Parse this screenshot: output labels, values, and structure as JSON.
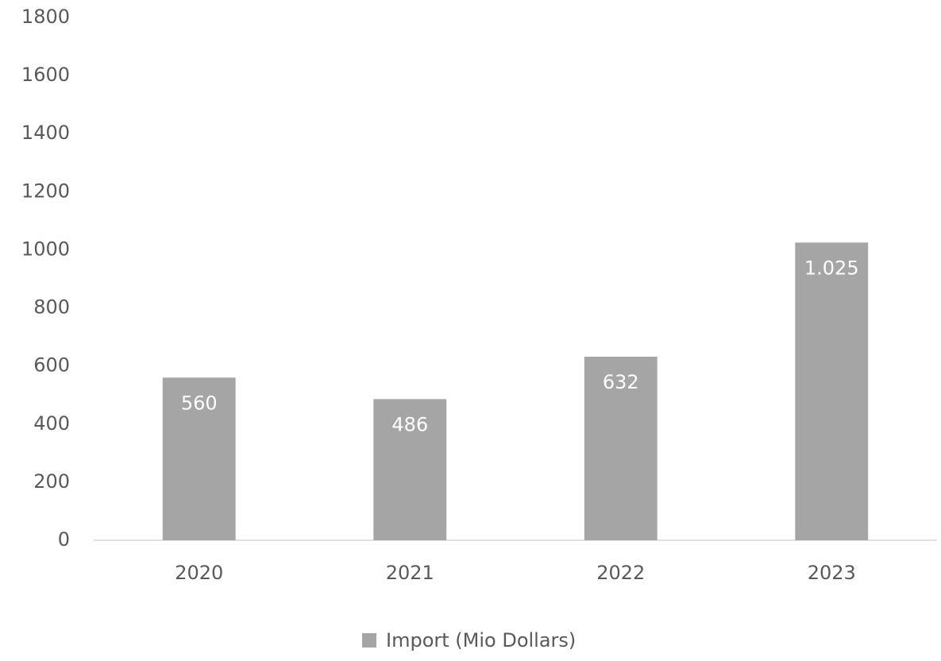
{
  "chart_data": {
    "type": "bar",
    "categories": [
      "2020",
      "2021",
      "2022",
      "2023"
    ],
    "series": [
      {
        "name": "Import (Mio Dollars)",
        "color": "#a5a5a5",
        "values": [
          560,
          486,
          632,
          1025
        ],
        "value_labels": [
          "560",
          "486",
          "632",
          "1.025"
        ]
      }
    ],
    "ylim": [
      0,
      1800
    ],
    "yticks": [
      0,
      200,
      400,
      600,
      800,
      1000,
      1200,
      1400,
      1600,
      1800
    ],
    "grid": false,
    "legend": "bottom"
  }
}
